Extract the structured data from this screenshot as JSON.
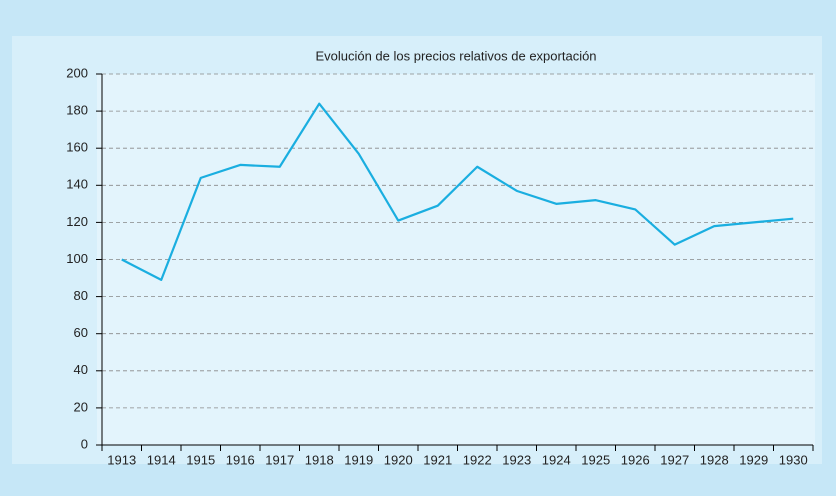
{
  "chart_data": {
    "type": "line",
    "title": "Evolución de los precios relativos de exportación",
    "categories": [
      "1913",
      "1914",
      "1915",
      "1916",
      "1917",
      "1918",
      "1919",
      "1920",
      "1921",
      "1922",
      "1923",
      "1924",
      "1925",
      "1926",
      "1927",
      "1928",
      "1929",
      "1930"
    ],
    "values": [
      100,
      89,
      144,
      151,
      150,
      184,
      157,
      121,
      129,
      150,
      137,
      130,
      132,
      127,
      108,
      118,
      120,
      122
    ],
    "color": "#1aaee0",
    "ylim": [
      0,
      200
    ],
    "yticks": [
      0,
      20,
      40,
      60,
      80,
      100,
      120,
      140,
      160,
      180,
      200
    ],
    "grid": true
  }
}
